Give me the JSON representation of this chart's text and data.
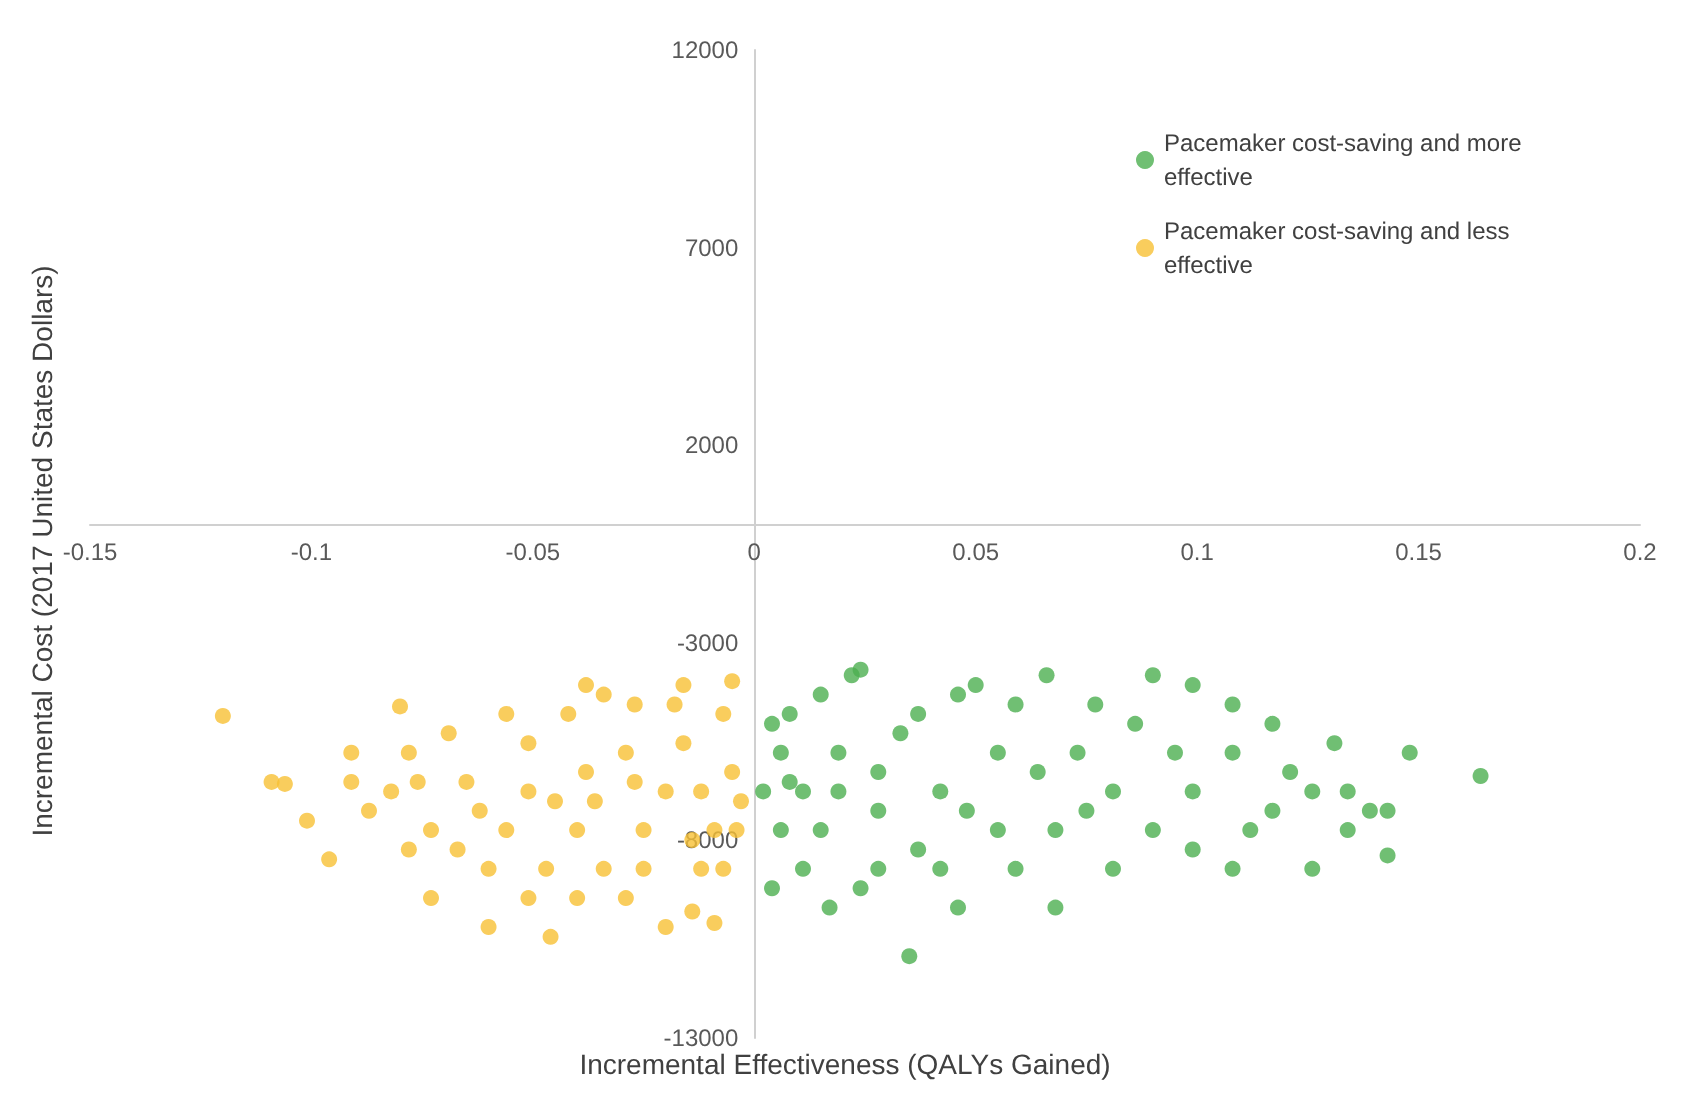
{
  "chart_data": {
    "type": "scatter",
    "xlabel": "Incremental Effectiveness (QALYs Gained)",
    "ylabel": "Incremental Cost (2017 United States Dollars)",
    "xlim": [
      -0.15,
      0.2
    ],
    "xticks": [
      -0.15,
      -0.1,
      -0.05,
      0,
      0.05,
      0.1,
      0.15,
      0.2
    ],
    "ylim": [
      -13000,
      12000
    ],
    "yticks": [
      -13000,
      -8000,
      -3000,
      2000,
      7000,
      12000
    ],
    "grid": false,
    "legend": "top right",
    "marker": "circle",
    "series": [
      {
        "name": "Pacemaker cost-saving and more effective",
        "color": "#4caf50",
        "x": [
          0.035,
          0.148,
          0.164,
          0.143,
          0.131,
          0.117,
          0.099,
          0.09,
          0.024,
          0.022,
          0.015,
          0.008,
          0.004,
          0.006,
          0.011,
          0.019,
          0.028,
          0.037,
          0.046,
          0.055,
          0.064,
          0.073,
          0.081,
          0.09,
          0.099,
          0.108,
          0.117,
          0.126,
          0.134,
          0.095,
          0.068,
          0.059,
          0.042,
          0.033,
          0.011,
          0.017,
          0.024,
          0.006,
          0.002,
          0.004,
          0.046,
          0.059,
          0.077,
          0.108,
          0.081,
          0.099,
          0.134,
          0.139,
          0.121,
          0.108,
          0.068,
          0.042,
          0.055,
          0.028,
          0.015,
          0.019,
          0.008,
          0.028,
          0.037,
          0.048,
          0.075,
          0.086,
          0.112,
          0.126,
          0.143,
          0.066,
          0.05
        ],
        "values": [
          -10930,
          -5780,
          -6370,
          -8380,
          -5540,
          -5050,
          -4070,
          -3820,
          -3680,
          -3820,
          -4310,
          -4800,
          -9210,
          -7740,
          -6760,
          -5780,
          -7250,
          -8230,
          -9700,
          -7740,
          -6270,
          -5780,
          -6760,
          -7740,
          -8230,
          -8720,
          -7250,
          -6760,
          -7740,
          -5780,
          -9700,
          -8720,
          -6760,
          -5290,
          -8720,
          -9700,
          -9210,
          -5780,
          -6760,
          -5050,
          -4310,
          -4560,
          -4560,
          -4560,
          -8720,
          -6760,
          -6760,
          -7250,
          -6270,
          -5780,
          -7740,
          -8720,
          -5780,
          -8720,
          -7740,
          -6760,
          -6520,
          -6270,
          -4800,
          -7250,
          -7250,
          -5050,
          -7740,
          -8720,
          -7250,
          -3820,
          -4070
        ]
      },
      {
        "name": "Pacemaker cost-saving and less effective",
        "color": "#f7c035",
        "x": [
          -0.12,
          -0.106,
          -0.096,
          -0.08,
          -0.078,
          -0.073,
          -0.06,
          -0.046,
          -0.038,
          -0.034,
          -0.016,
          -0.012,
          -0.009,
          -0.014,
          -0.065,
          -0.056,
          -0.087,
          -0.091,
          -0.101,
          -0.069,
          -0.051,
          -0.042,
          -0.029,
          -0.025,
          -0.02,
          -0.007,
          -0.005,
          -0.004,
          -0.034,
          -0.047,
          -0.06,
          -0.073,
          -0.082,
          -0.051,
          -0.04,
          -0.029,
          -0.02,
          -0.012,
          -0.005,
          -0.016,
          -0.056,
          -0.067,
          -0.078,
          -0.045,
          -0.036,
          -0.027,
          -0.009,
          -0.003,
          -0.04,
          -0.051,
          -0.091,
          -0.109,
          -0.038,
          -0.027,
          -0.018,
          -0.014,
          -0.007,
          -0.025,
          -0.062,
          -0.076
        ],
        "values": [
          -4850,
          -6570,
          -8480,
          -4610,
          -5780,
          -9460,
          -10190,
          -10440,
          -6270,
          -4310,
          -4070,
          -8720,
          -10090,
          -9800,
          -6520,
          -7740,
          -7250,
          -5780,
          -7500,
          -5290,
          -5540,
          -4800,
          -5780,
          -7740,
          -6760,
          -4800,
          -6270,
          -7740,
          -8720,
          -8720,
          -8720,
          -7740,
          -6760,
          -6760,
          -7740,
          -9460,
          -10190,
          -6760,
          -3970,
          -5540,
          -4800,
          -8230,
          -8230,
          -7010,
          -7010,
          -6520,
          -7740,
          -7010,
          -9460,
          -9460,
          -6520,
          -6520,
          -4070,
          -4560,
          -4560,
          -7990,
          -8720,
          -8720,
          -7250,
          -6520
        ]
      }
    ]
  }
}
